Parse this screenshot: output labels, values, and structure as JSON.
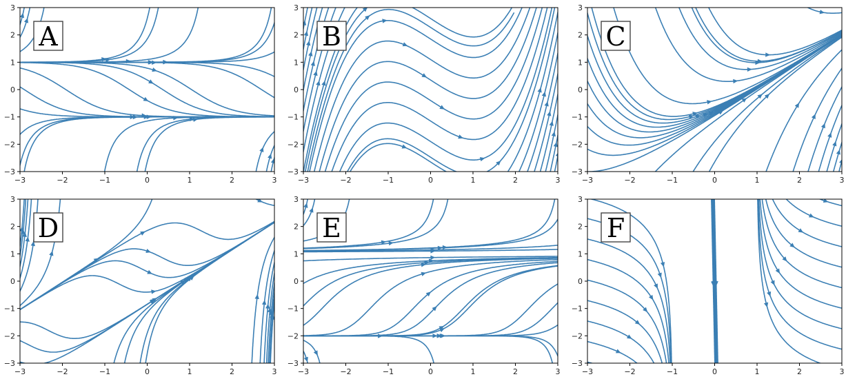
{
  "chart_data": [
    {
      "type": "streamplot",
      "label": "A",
      "xlim": [
        -3,
        3
      ],
      "ylim": [
        -3,
        3
      ],
      "xticks": [
        "−3",
        "−2",
        "−1",
        "0",
        "1",
        "2",
        "3"
      ],
      "yticks": [
        "3",
        "2",
        "1",
        "0",
        "−1",
        "−2",
        "−3"
      ]
    },
    {
      "type": "streamplot",
      "label": "B",
      "xlim": [
        -3,
        3
      ],
      "ylim": [
        -3,
        3
      ],
      "xticks": [
        "−3",
        "−2",
        "−1",
        "0",
        "1",
        "2",
        "3"
      ],
      "yticks": [
        "3",
        "2",
        "1",
        "0",
        "−1",
        "−2",
        "−3"
      ]
    },
    {
      "type": "streamplot",
      "label": "C",
      "xlim": [
        -3,
        3
      ],
      "ylim": [
        -3,
        3
      ],
      "xticks": [
        "−3",
        "−2",
        "−1",
        "0",
        "1",
        "2",
        "3"
      ],
      "yticks": [
        "3",
        "2",
        "1",
        "0",
        "−1",
        "−2",
        "−3"
      ]
    },
    {
      "type": "streamplot",
      "label": "D",
      "xlim": [
        -3,
        3
      ],
      "ylim": [
        -3,
        3
      ],
      "xticks": [
        "−3",
        "−2",
        "−1",
        "0",
        "1",
        "2",
        "3"
      ],
      "yticks": [
        "3",
        "2",
        "1",
        "0",
        "−1",
        "−2",
        "−3"
      ]
    },
    {
      "type": "streamplot",
      "label": "E",
      "xlim": [
        -3,
        3
      ],
      "ylim": [
        -3,
        3
      ],
      "xticks": [
        "−3",
        "−2",
        "−1",
        "0",
        "1",
        "2",
        "3"
      ],
      "yticks": [
        "3",
        "2",
        "1",
        "0",
        "−1",
        "−2",
        "−3"
      ]
    },
    {
      "type": "streamplot",
      "label": "F",
      "xlim": [
        -3,
        3
      ],
      "ylim": [
        -3,
        3
      ],
      "xticks": [
        "−3",
        "−2",
        "−1",
        "0",
        "1",
        "2",
        "3"
      ],
      "yticks": [
        "3",
        "2",
        "1",
        "0",
        "−1",
        "−2",
        "−3"
      ]
    }
  ],
  "colors": {
    "stream": "#3b7fb4",
    "background": "#ffffff",
    "frame": "#000000"
  },
  "grid": false
}
